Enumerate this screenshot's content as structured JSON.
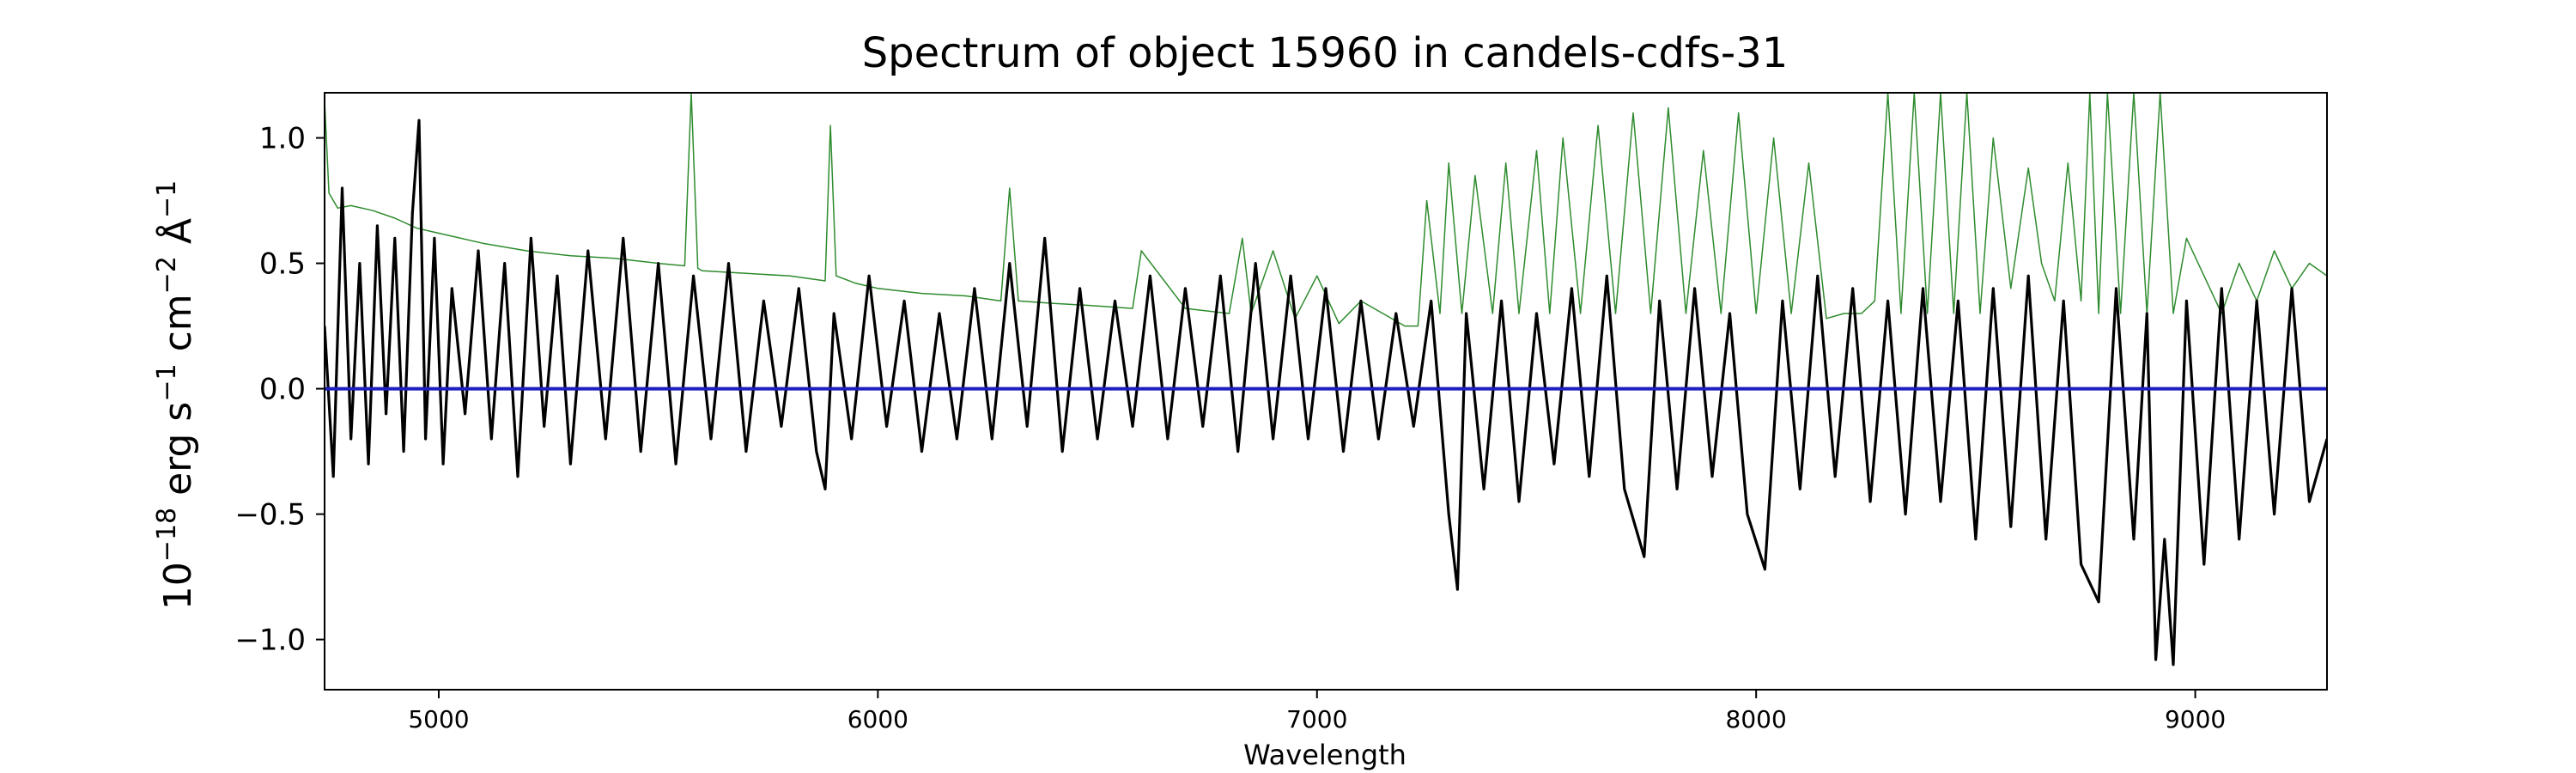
{
  "chart_data": {
    "type": "line",
    "title": "Spectrum of object 15960 in candels-cdfs-31",
    "xlabel": "Wavelength",
    "ylabel_main": "10",
    "ylabel_exp1": "−18",
    "ylabel_mid1": " erg s",
    "ylabel_exp2": "−1",
    "ylabel_mid2": " cm",
    "ylabel_exp3": "−2",
    "ylabel_mid3": " Å",
    "ylabel_exp4": "−1",
    "xlim": [
      4740,
      9300
    ],
    "ylim": [
      -1.2,
      1.18
    ],
    "xticks": [
      5000,
      6000,
      7000,
      8000,
      9000
    ],
    "xtick_labels": [
      "5000",
      "6000",
      "7000",
      "8000",
      "9000"
    ],
    "yticks": [
      -1.0,
      -0.5,
      0.0,
      0.5,
      1.0
    ],
    "ytick_labels": [
      "−1.0",
      "−0.5",
      "0.0",
      "0.5",
      "1.0"
    ],
    "grid": false,
    "series": [
      {
        "role": "flux",
        "color": "#000000",
        "x": [
          4740,
          4760,
          4780,
          4800,
          4820,
          4840,
          4860,
          4880,
          4900,
          4920,
          4940,
          4955,
          4970,
          4990,
          5010,
          5030,
          5060,
          5090,
          5120,
          5150,
          5180,
          5210,
          5240,
          5270,
          5300,
          5340,
          5380,
          5420,
          5460,
          5500,
          5540,
          5580,
          5620,
          5660,
          5700,
          5740,
          5780,
          5820,
          5860,
          5880,
          5900,
          5940,
          5980,
          6020,
          6060,
          6100,
          6140,
          6180,
          6220,
          6260,
          6300,
          6340,
          6380,
          6420,
          6460,
          6500,
          6540,
          6580,
          6620,
          6660,
          6700,
          6740,
          6780,
          6820,
          6860,
          6900,
          6940,
          6980,
          7020,
          7060,
          7100,
          7140,
          7180,
          7220,
          7260,
          7300,
          7320,
          7340,
          7380,
          7420,
          7460,
          7500,
          7540,
          7580,
          7620,
          7660,
          7700,
          7745,
          7780,
          7820,
          7860,
          7900,
          7940,
          7980,
          8020,
          8060,
          8100,
          8140,
          8180,
          8220,
          8260,
          8300,
          8340,
          8380,
          8420,
          8460,
          8500,
          8540,
          8580,
          8620,
          8660,
          8700,
          8740,
          8780,
          8820,
          8860,
          8890,
          8910,
          8930,
          8950,
          8980,
          9020,
          9060,
          9100,
          9140,
          9180,
          9220,
          9260,
          9300
        ],
        "y": [
          0.25,
          -0.35,
          0.8,
          -0.2,
          0.5,
          -0.3,
          0.65,
          -0.1,
          0.6,
          -0.25,
          0.7,
          1.07,
          -0.2,
          0.6,
          -0.3,
          0.4,
          -0.1,
          0.55,
          -0.2,
          0.5,
          -0.35,
          0.6,
          -0.15,
          0.45,
          -0.3,
          0.55,
          -0.2,
          0.6,
          -0.25,
          0.5,
          -0.3,
          0.45,
          -0.2,
          0.5,
          -0.25,
          0.35,
          -0.15,
          0.4,
          -0.25,
          -0.4,
          0.3,
          -0.2,
          0.45,
          -0.15,
          0.35,
          -0.25,
          0.3,
          -0.2,
          0.4,
          -0.2,
          0.5,
          -0.15,
          0.6,
          -0.25,
          0.4,
          -0.2,
          0.35,
          -0.15,
          0.45,
          -0.2,
          0.4,
          -0.15,
          0.45,
          -0.25,
          0.5,
          -0.2,
          0.45,
          -0.2,
          0.4,
          -0.25,
          0.35,
          -0.2,
          0.3,
          -0.15,
          0.35,
          -0.5,
          -0.8,
          0.3,
          -0.4,
          0.35,
          -0.45,
          0.3,
          -0.3,
          0.4,
          -0.35,
          0.45,
          -0.4,
          -0.67,
          0.35,
          -0.4,
          0.4,
          -0.35,
          0.3,
          -0.5,
          -0.72,
          0.35,
          -0.4,
          0.45,
          -0.35,
          0.4,
          -0.45,
          0.35,
          -0.5,
          0.4,
          -0.45,
          0.35,
          -0.6,
          0.4,
          -0.55,
          0.45,
          -0.6,
          0.35,
          -0.7,
          -0.85,
          0.4,
          -0.6,
          0.3,
          -1.08,
          -0.6,
          -1.1,
          0.35,
          -0.7,
          0.4,
          -0.6,
          0.35,
          -0.5,
          0.4,
          -0.45,
          -0.2
        ]
      },
      {
        "role": "error",
        "color": "#2e8b2e",
        "x": [
          4740,
          4750,
          4770,
          4800,
          4850,
          4900,
          4950,
          5000,
          5100,
          5200,
          5300,
          5400,
          5500,
          5560,
          5575,
          5590,
          5600,
          5700,
          5800,
          5880,
          5892,
          5905,
          5950,
          6000,
          6100,
          6200,
          6280,
          6300,
          6320,
          6400,
          6500,
          6580,
          6600,
          6700,
          6800,
          6830,
          6850,
          6900,
          6950,
          7000,
          7050,
          7100,
          7150,
          7200,
          7230,
          7250,
          7280,
          7300,
          7330,
          7360,
          7400,
          7430,
          7460,
          7500,
          7530,
          7560,
          7600,
          7640,
          7680,
          7720,
          7760,
          7800,
          7840,
          7880,
          7920,
          7960,
          8000,
          8040,
          8080,
          8120,
          8160,
          8200,
          8240,
          8270,
          8300,
          8330,
          8360,
          8390,
          8420,
          8450,
          8480,
          8510,
          8540,
          8580,
          8620,
          8650,
          8680,
          8710,
          8740,
          8760,
          8780,
          8800,
          8830,
          8860,
          8890,
          8920,
          8950,
          8980,
          9020,
          9060,
          9100,
          9140,
          9180,
          9220,
          9260,
          9300
        ],
        "y": [
          1.15,
          0.78,
          0.72,
          0.73,
          0.71,
          0.68,
          0.64,
          0.62,
          0.58,
          0.55,
          0.53,
          0.52,
          0.5,
          0.49,
          1.18,
          0.48,
          0.47,
          0.46,
          0.45,
          0.43,
          1.05,
          0.45,
          0.42,
          0.4,
          0.38,
          0.37,
          0.35,
          0.8,
          0.35,
          0.34,
          0.33,
          0.32,
          0.55,
          0.32,
          0.3,
          0.6,
          0.3,
          0.55,
          0.28,
          0.45,
          0.26,
          0.35,
          0.3,
          0.25,
          0.25,
          0.75,
          0.3,
          0.9,
          0.3,
          0.85,
          0.3,
          0.9,
          0.3,
          0.95,
          0.3,
          1.0,
          0.3,
          1.05,
          0.3,
          1.1,
          0.3,
          1.12,
          0.3,
          0.95,
          0.3,
          1.1,
          0.3,
          1.0,
          0.3,
          0.9,
          0.28,
          0.3,
          0.3,
          0.35,
          1.18,
          0.3,
          1.18,
          0.3,
          1.18,
          0.3,
          1.18,
          0.3,
          1.0,
          0.4,
          0.88,
          0.5,
          0.35,
          0.9,
          0.35,
          1.18,
          0.3,
          1.18,
          0.3,
          1.18,
          0.3,
          1.18,
          0.3,
          0.6,
          0.45,
          0.3,
          0.5,
          0.35,
          0.55,
          0.4,
          0.5,
          0.45
        ]
      },
      {
        "role": "zero",
        "color": "#1f1fbf",
        "x": [
          4740,
          9300
        ],
        "y": [
          0.0,
          0.0
        ]
      }
    ]
  }
}
